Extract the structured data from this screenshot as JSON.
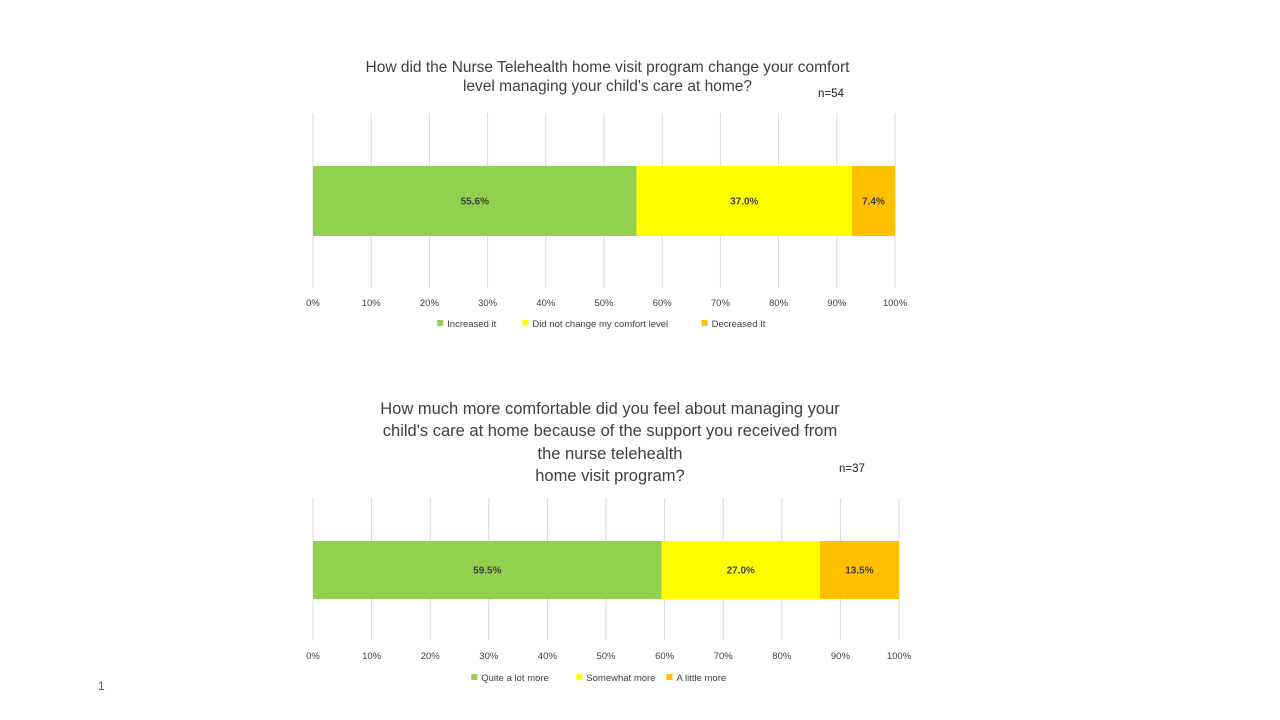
{
  "slide": {
    "page_number": "1"
  },
  "chart_data": [
    {
      "type": "bar",
      "orientation": "horizontal",
      "stacked": true,
      "title": "How did the Nurse Telehealth home visit program change your comfort level managing your child's care at home?",
      "title_lines": [
        "How did the Nurse Telehealth home visit program change your comfort",
        "level managing your child's care at home?"
      ],
      "annotation": "n=54",
      "xlim": [
        0,
        100
      ],
      "x_ticks": [
        "0%",
        "10%",
        "20%",
        "30%",
        "40%",
        "50%",
        "60%",
        "70%",
        "80%",
        "90%",
        "100%"
      ],
      "grid": true,
      "legend_position": "bottom",
      "series": [
        {
          "name": "Increased it",
          "value": 55.6,
          "label": "55.6%",
          "color": "#92d050"
        },
        {
          "name": "Did not change my comfort level",
          "value": 37.0,
          "label": "37.0%",
          "color": "#ffff00"
        },
        {
          "name": "Decreased It",
          "value": 7.4,
          "label": "7.4%",
          "color": "#ffc000"
        }
      ]
    },
    {
      "type": "bar",
      "orientation": "horizontal",
      "stacked": true,
      "title": "How much more comfortable did you feel about managing your child's care at home because of the support you received from the nurse telehealth home visit program?",
      "title_lines": [
        "How much more comfortable did you feel about managing your",
        "child's care at home because of the support you received from",
        "the nurse telehealth",
        "home visit program?"
      ],
      "annotation": "n=37",
      "xlim": [
        0,
        100
      ],
      "x_ticks": [
        "0%",
        "10%",
        "20%",
        "30%",
        "40%",
        "50%",
        "60%",
        "70%",
        "80%",
        "90%",
        "100%"
      ],
      "grid": true,
      "legend_position": "bottom",
      "series": [
        {
          "name": "Quite a lot more",
          "value": 59.5,
          "label": "59.5%",
          "color": "#92d050"
        },
        {
          "name": "Somewhat more",
          "value": 27.0,
          "label": "27.0%",
          "color": "#ffff00"
        },
        {
          "name": "A little more",
          "value": 13.5,
          "label": "13.5%",
          "color": "#ffc000"
        }
      ]
    }
  ]
}
